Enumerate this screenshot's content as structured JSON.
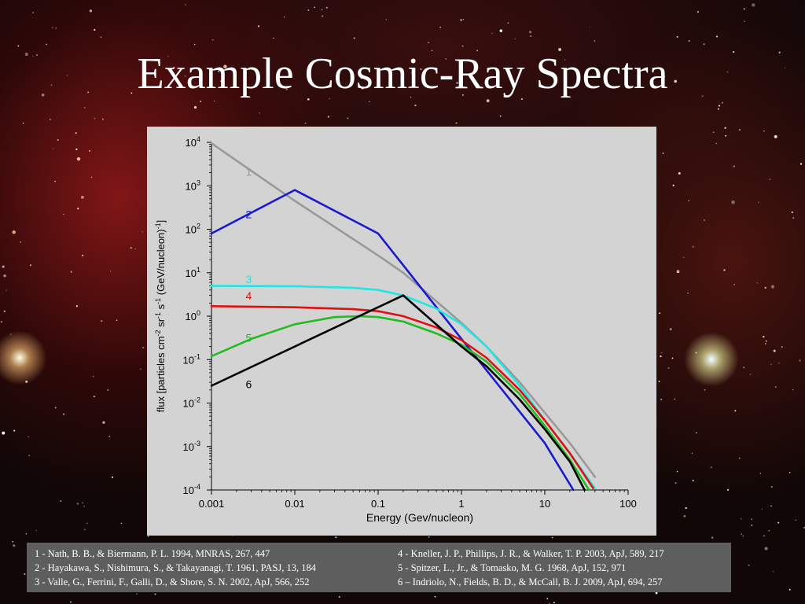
{
  "slide": {
    "title": "Example Cosmic-Ray Spectra"
  },
  "colors": {
    "plot_background": "#d3d3d3",
    "references_background": "#5e5e5e"
  },
  "chart_data": {
    "type": "line",
    "title": "",
    "xlabel": "Energy (Gev/nucleon)",
    "ylabel": "flux [particles cm-2 sr-1 s-1 (GeV/nucleon)-1]",
    "ylabel_parts": [
      "flux [particles cm",
      "-2",
      " sr",
      "-1",
      " s",
      "-1",
      " (GeV/nucleon)",
      "-1",
      "]"
    ],
    "x_scale": "log",
    "y_scale": "log",
    "xlim": [
      0.001,
      100
    ],
    "ylim": [
      0.0001,
      10000
    ],
    "grid": false,
    "x_tick_labels": [
      "0.001",
      "0.01",
      "0.1",
      "1",
      "10",
      "100"
    ],
    "x_tick_values": [
      0.001,
      0.01,
      0.1,
      1,
      10,
      100
    ],
    "y_tick_values": [
      0.0001,
      0.001,
      0.01,
      0.1,
      1,
      10,
      100,
      1000,
      10000
    ],
    "y_tick_labels": [
      {
        "base": "10",
        "exp": "-4"
      },
      {
        "base": "10",
        "exp": "-3"
      },
      {
        "base": "10",
        "exp": "-2"
      },
      {
        "base": "10",
        "exp": "-1"
      },
      {
        "base": "10",
        "exp": "0"
      },
      {
        "base": "10",
        "exp": "1"
      },
      {
        "base": "10",
        "exp": "2"
      },
      {
        "base": "10",
        "exp": "3"
      },
      {
        "base": "10",
        "exp": "4"
      }
    ],
    "series": [
      {
        "name": "1",
        "color": "#999999",
        "label_pos": {
          "x": 0.0028,
          "y": 1700
        },
        "points": [
          [
            0.001,
            9500
          ],
          [
            0.01,
            450
          ],
          [
            0.1,
            25
          ],
          [
            0.2,
            10
          ],
          [
            1,
            0.7
          ],
          [
            2,
            0.2
          ],
          [
            5,
            0.03
          ],
          [
            10,
            0.006
          ],
          [
            20,
            0.0012
          ],
          [
            40,
            0.0002
          ]
        ]
      },
      {
        "name": "2",
        "color": "#1a1acc",
        "label_pos": {
          "x": 0.0028,
          "y": 180
        },
        "points": [
          [
            0.001,
            80
          ],
          [
            0.01,
            800
          ],
          [
            0.1,
            80
          ],
          [
            1,
            0.3
          ],
          [
            10,
            0.0012
          ],
          [
            22,
            0.0001
          ]
        ]
      },
      {
        "name": "3",
        "color": "#22e5e5",
        "label_pos": {
          "x": 0.0028,
          "y": 5.8
        },
        "points": [
          [
            0.001,
            5
          ],
          [
            0.01,
            4.9
          ],
          [
            0.05,
            4.5
          ],
          [
            0.1,
            4
          ],
          [
            0.2,
            3
          ],
          [
            0.5,
            1.5
          ],
          [
            1,
            0.65
          ],
          [
            2,
            0.2
          ],
          [
            5,
            0.025
          ],
          [
            10,
            0.004
          ],
          [
            20,
            0.0007
          ],
          [
            40,
            0.00011
          ]
        ]
      },
      {
        "name": "4",
        "color": "#dd1111",
        "label_pos": {
          "x": 0.0028,
          "y": 2.4
        },
        "points": [
          [
            0.001,
            1.7
          ],
          [
            0.01,
            1.6
          ],
          [
            0.05,
            1.45
          ],
          [
            0.1,
            1.3
          ],
          [
            0.2,
            1.0
          ],
          [
            0.5,
            0.55
          ],
          [
            1,
            0.28
          ],
          [
            2,
            0.11
          ],
          [
            5,
            0.02
          ],
          [
            10,
            0.004
          ],
          [
            20,
            0.0007
          ],
          [
            38,
            0.00011
          ]
        ]
      },
      {
        "name": "5",
        "color": "#22bb22",
        "label_pos": {
          "x": 0.0028,
          "y": 0.26
        },
        "points": [
          [
            0.001,
            0.12
          ],
          [
            0.003,
            0.3
          ],
          [
            0.01,
            0.65
          ],
          [
            0.03,
            0.95
          ],
          [
            0.06,
            1.0
          ],
          [
            0.1,
            0.95
          ],
          [
            0.2,
            0.75
          ],
          [
            0.5,
            0.4
          ],
          [
            1,
            0.22
          ],
          [
            2,
            0.09
          ],
          [
            5,
            0.016
          ],
          [
            10,
            0.003
          ],
          [
            20,
            0.0005
          ],
          [
            34,
            0.0001
          ]
        ]
      },
      {
        "name": "6",
        "color": "#000000",
        "label_pos": {
          "x": 0.0028,
          "y": 0.022
        },
        "points": [
          [
            0.001,
            0.025
          ],
          [
            0.2,
            3
          ],
          [
            1,
            0.2
          ],
          [
            2,
            0.07
          ],
          [
            5,
            0.012
          ],
          [
            10,
            0.0025
          ],
          [
            20,
            0.00045
          ],
          [
            30,
            0.0001
          ]
        ]
      }
    ]
  },
  "references": {
    "left": [
      "1 - Nath, B. B., & Biermann, P. L. 1994, MNRAS, 267, 447",
      "2 - Hayakawa, S., Nishimura, S., & Takayanagi, T. 1961, PASJ, 13, 184",
      "3 - Valle, G., Ferrini, F., Galli, D., & Shore, S. N. 2002, ApJ, 566, 252"
    ],
    "right": [
      "4 - Kneller, J. P., Phillips, J. R., & Walker, T. P. 2003, ApJ, 589, 217",
      "5 - Spitzer, L., Jr., & Tomasko, M. G. 1968, ApJ, 152, 971",
      "6 – Indriolo, N., Fields, B. D., & McCall, B. J. 2009, ApJ, 694, 257"
    ]
  }
}
